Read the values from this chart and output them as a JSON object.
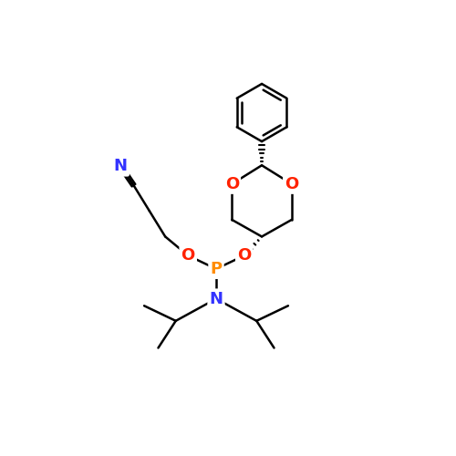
{
  "background_color": "#ffffff",
  "figsize": [
    5.0,
    5.0
  ],
  "dpi": 100,
  "atom_colors": {
    "C": "#000000",
    "N": "#3333ff",
    "O": "#ff2200",
    "P": "#ff8c00"
  },
  "bond_color": "#000000",
  "bond_width": 1.8,
  "font_size_atom": 13
}
